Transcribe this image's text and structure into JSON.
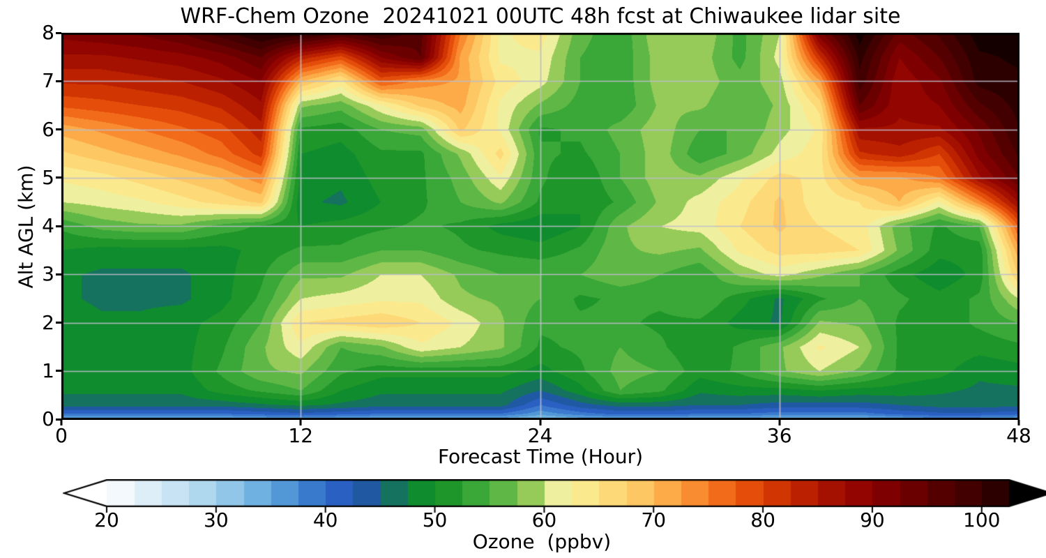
{
  "title": "WRF-Chem Ozone  20241021 00UTC 48h fcst at Chiwaukee lidar site",
  "axes": {
    "xlabel": "Forecast Time (Hour)",
    "ylabel": "Alt AGL (km)",
    "x_tick_values": [
      0,
      12,
      24,
      36,
      48
    ],
    "x_tick_labels": [
      "0",
      "12",
      "24",
      "36",
      "48"
    ],
    "y_tick_values": [
      0,
      1,
      2,
      3,
      4,
      5,
      6,
      7,
      8
    ],
    "y_tick_labels": [
      "0",
      "1",
      "2",
      "3",
      "4",
      "5",
      "6",
      "7",
      "8"
    ],
    "xlim": [
      0,
      48
    ],
    "ylim": [
      0,
      8
    ]
  },
  "colorbar": {
    "label": "Ozone  (ppbv)",
    "tick_values": [
      20,
      30,
      40,
      50,
      60,
      70,
      80,
      90,
      100
    ],
    "tick_labels": [
      "20",
      "30",
      "40",
      "50",
      "60",
      "70",
      "80",
      "90",
      "100"
    ],
    "range_min": 20,
    "range_max": 102.5,
    "extend": "both",
    "left_arrow_color": "#ffffff",
    "right_arrow_color": "#000000"
  },
  "chart_data": {
    "type": "heatmap",
    "title": "WRF-Chem Ozone  20241021 00UTC 48h fcst at Chiwaukee lidar site",
    "xlabel": "Forecast Time (Hour)",
    "ylabel": "Alt AGL (km)",
    "xlim": [
      0,
      48
    ],
    "ylim": [
      0,
      8
    ],
    "grid": true,
    "grid_color": "#bcbcc8",
    "grid_x_hours": [
      12,
      24,
      36
    ],
    "grid_y_km": [
      1,
      2,
      3,
      4,
      5,
      6,
      7
    ],
    "legend_position": "bottom-colorbar",
    "units": "ppbv",
    "contour_interval_ppbv": 2.5,
    "x_hours": [
      0,
      2,
      4,
      6,
      8,
      10,
      12,
      14,
      16,
      18,
      20,
      22,
      24,
      26,
      28,
      30,
      32,
      34,
      36,
      38,
      40,
      42,
      44,
      46,
      48
    ],
    "alt_km": [
      8,
      7.5,
      7,
      6.5,
      6,
      5.5,
      5,
      4.5,
      4,
      3.5,
      3,
      2.5,
      2,
      1.5,
      1,
      0.6,
      0.3,
      0.12,
      0
    ],
    "values_ppbv": [
      [
        91,
        92,
        93,
        95,
        99,
        103,
        102,
        98,
        100,
        96,
        75,
        62,
        64,
        56,
        53,
        60,
        60,
        54,
        60,
        92,
        104,
        94,
        98,
        104,
        104
      ],
      [
        87,
        87,
        88,
        89,
        91,
        95,
        84,
        79,
        90,
        95,
        72,
        62,
        62,
        55,
        53,
        59,
        59,
        54,
        61,
        82,
        101,
        90,
        95,
        102,
        103
      ],
      [
        83,
        83,
        84,
        85,
        87,
        90,
        70,
        64,
        78,
        74,
        72,
        64,
        61,
        55,
        53,
        59,
        59,
        56,
        59,
        72,
        99,
        88,
        92,
        101,
        102
      ],
      [
        78,
        79,
        80,
        81,
        83,
        87,
        58,
        56,
        62,
        68,
        71,
        62,
        57,
        54,
        53,
        58,
        58,
        55,
        58,
        66,
        95,
        88,
        90,
        97,
        101
      ],
      [
        71,
        73,
        75,
        77,
        79,
        84,
        52,
        51,
        55,
        56,
        68,
        62,
        52,
        53,
        56,
        59,
        55,
        55,
        59,
        63,
        87,
        87,
        87,
        93,
        100
      ],
      [
        67,
        69,
        71,
        73,
        76,
        81,
        50,
        49,
        52,
        52,
        58,
        66,
        53,
        52,
        55,
        59,
        53,
        56,
        61,
        64,
        82,
        84,
        80,
        91,
        98
      ],
      [
        63,
        64,
        66,
        68,
        70,
        74,
        49,
        48,
        51,
        52,
        56,
        62,
        53,
        50,
        55,
        59,
        58,
        62,
        66,
        64,
        72,
        72,
        75,
        87,
        95
      ],
      [
        60,
        61,
        62,
        64,
        66,
        68,
        48,
        47,
        50,
        52,
        55,
        58,
        52,
        50,
        53,
        58,
        61,
        64,
        68,
        63,
        65,
        70,
        62,
        74,
        88
      ],
      [
        53,
        56,
        57,
        57,
        54,
        52,
        50,
        51,
        52,
        53,
        52,
        49,
        48,
        50,
        57,
        60,
        61,
        65,
        68,
        65,
        64,
        56,
        52,
        55,
        78
      ],
      [
        50,
        49,
        49,
        49,
        49,
        51,
        53,
        53,
        55,
        55,
        53,
        52,
        51,
        53,
        57,
        58,
        57,
        63,
        66,
        66,
        65,
        57,
        51,
        51,
        72
      ],
      [
        48,
        47,
        47,
        47,
        49,
        52,
        57,
        57,
        60,
        60,
        57,
        55,
        55,
        55,
        57,
        55,
        53,
        58,
        61,
        58,
        55,
        51,
        48,
        51,
        68
      ],
      [
        48,
        47,
        47,
        47,
        49,
        53,
        60,
        61,
        62,
        62,
        58,
        57,
        55,
        52,
        53,
        53,
        55,
        51,
        47,
        52,
        55,
        53,
        51,
        53,
        60
      ],
      [
        49,
        48,
        48,
        49,
        51,
        55,
        65,
        66,
        67,
        65,
        62,
        58,
        53,
        53,
        53,
        52,
        52,
        49,
        47,
        58,
        57,
        52,
        51,
        53,
        55
      ],
      [
        48,
        48,
        48,
        49,
        52,
        57,
        62,
        55,
        57,
        62,
        60,
        58,
        52,
        53,
        55,
        53,
        50,
        53,
        57,
        63,
        60,
        52,
        52,
        51,
        52
      ],
      [
        49,
        49,
        49,
        49,
        53,
        57,
        58,
        53,
        51,
        51,
        51,
        51,
        49,
        52,
        56,
        55,
        51,
        53,
        57,
        60,
        57,
        52,
        51,
        48,
        49
      ],
      [
        48,
        48,
        48,
        48,
        51,
        53,
        55,
        50,
        48,
        48,
        48,
        48,
        45,
        49,
        55,
        53,
        48,
        49,
        49,
        50,
        49,
        49,
        48,
        47,
        47
      ],
      [
        46,
        46,
        46,
        46,
        46,
        47,
        48,
        47,
        46,
        46,
        46,
        46,
        40,
        44,
        46,
        46,
        45,
        45,
        44,
        44,
        44,
        45,
        46,
        46,
        46
      ],
      [
        40,
        40,
        40,
        40,
        40,
        41,
        42,
        41,
        40,
        40,
        40,
        40,
        36,
        39,
        41,
        41,
        40,
        40,
        39,
        39,
        39,
        41,
        42,
        42,
        41
      ],
      [
        33,
        33,
        33,
        33,
        33,
        34,
        35,
        34,
        33,
        33,
        33,
        33,
        31,
        33,
        34,
        34,
        33,
        33,
        32,
        32,
        32,
        34,
        36,
        35,
        34
      ]
    ],
    "colormap_stops": [
      [
        20,
        "#ffffff"
      ],
      [
        25,
        "#d4e9f7"
      ],
      [
        30,
        "#a3d1ec"
      ],
      [
        35,
        "#5ea7dc"
      ],
      [
        40,
        "#2f6bc9"
      ],
      [
        43,
        "#2451b8"
      ],
      [
        45,
        "#1a667f"
      ],
      [
        47,
        "#127a4c"
      ],
      [
        48.75,
        "#0f8c2e"
      ],
      [
        51.25,
        "#1f9629"
      ],
      [
        53.75,
        "#3aa739"
      ],
      [
        56.25,
        "#5fb846"
      ],
      [
        58.75,
        "#96cb59"
      ],
      [
        61.25,
        "#eef0a0"
      ],
      [
        63.75,
        "#fbe98e"
      ],
      [
        66.25,
        "#fed977"
      ],
      [
        68.75,
        "#fdc763"
      ],
      [
        71.25,
        "#fcab48"
      ],
      [
        73.75,
        "#f98c30"
      ],
      [
        76.25,
        "#f26b1b"
      ],
      [
        78.75,
        "#e44e0a"
      ],
      [
        81.25,
        "#d03502"
      ],
      [
        83.75,
        "#bb2100"
      ],
      [
        86.25,
        "#a51100"
      ],
      [
        88.75,
        "#920500"
      ],
      [
        91.25,
        "#7e0000"
      ],
      [
        93.75,
        "#6a0000"
      ],
      [
        96.25,
        "#550000"
      ],
      [
        98.75,
        "#420000"
      ],
      [
        101.25,
        "#2d0000"
      ],
      [
        103.75,
        "#150000"
      ],
      [
        106.25,
        "#000000"
      ]
    ]
  }
}
